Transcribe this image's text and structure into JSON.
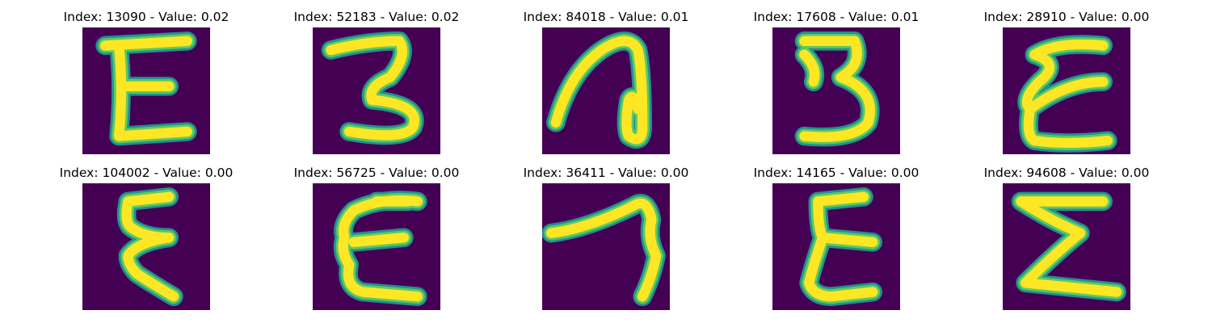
{
  "colors": {
    "background": "#440154",
    "stroke": "#fde725",
    "edge": "#5ec962",
    "halo": "#21918c"
  },
  "panels": [
    {
      "title": "Index: 13090 - Value: 0.02",
      "glyph": "E"
    },
    {
      "title": "Index: 52183 - Value: 0.02",
      "glyph": "3"
    },
    {
      "title": "Index: 84018 - Value: 0.01",
      "glyph": "loop"
    },
    {
      "title": "Index: 17608 - Value: 0.01",
      "glyph": "3"
    },
    {
      "title": "Index: 28910 - Value: 0.00",
      "glyph": "E"
    },
    {
      "title": "Index: 104002 - Value: 0.00",
      "glyph": "Σ"
    },
    {
      "title": "Index: 56725 - Value: 0.00",
      "glyph": "E"
    },
    {
      "title": "Index: 36411 - Value: 0.00",
      "glyph": "7"
    },
    {
      "title": "Index: 14165 - Value: 0.00",
      "glyph": "E"
    },
    {
      "title": "Index: 94608 - Value: 0.00",
      "glyph": "Σ"
    }
  ]
}
